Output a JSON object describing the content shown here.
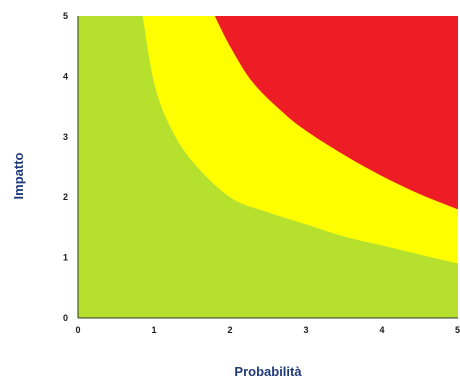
{
  "chart_data": {
    "type": "area",
    "xlabel": "Probabilità",
    "ylabel": "Impatto",
    "xlim": [
      0,
      5
    ],
    "ylim": [
      0,
      5
    ],
    "x_ticks": [
      "0",
      "1",
      "2",
      "3",
      "4",
      "5"
    ],
    "y_ticks": [
      "0",
      "1",
      "2",
      "3",
      "4",
      "5"
    ],
    "grid": false,
    "zones": [
      {
        "color": "#b5e02e"
      },
      {
        "color": "#ffff00"
      },
      {
        "color": "#ee1c24"
      }
    ],
    "boundaries": [
      {
        "between": [
          "#b5e02e",
          "#ffff00"
        ],
        "points": [
          [
            0.85,
            5.0
          ],
          [
            1.0,
            3.9
          ],
          [
            1.2,
            3.2
          ],
          [
            1.5,
            2.6
          ],
          [
            2.0,
            2.0
          ],
          [
            2.5,
            1.75
          ],
          [
            3.0,
            1.55
          ],
          [
            3.5,
            1.35
          ],
          [
            4.0,
            1.2
          ],
          [
            4.5,
            1.05
          ],
          [
            5.0,
            0.9
          ]
        ]
      },
      {
        "between": [
          "#ffff00",
          "#ee1c24"
        ],
        "points": [
          [
            1.8,
            5.0
          ],
          [
            2.0,
            4.5
          ],
          [
            2.3,
            3.9
          ],
          [
            2.7,
            3.4
          ],
          [
            3.0,
            3.1
          ],
          [
            3.5,
            2.7
          ],
          [
            4.0,
            2.35
          ],
          [
            4.5,
            2.05
          ],
          [
            5.0,
            1.8
          ]
        ]
      }
    ]
  }
}
